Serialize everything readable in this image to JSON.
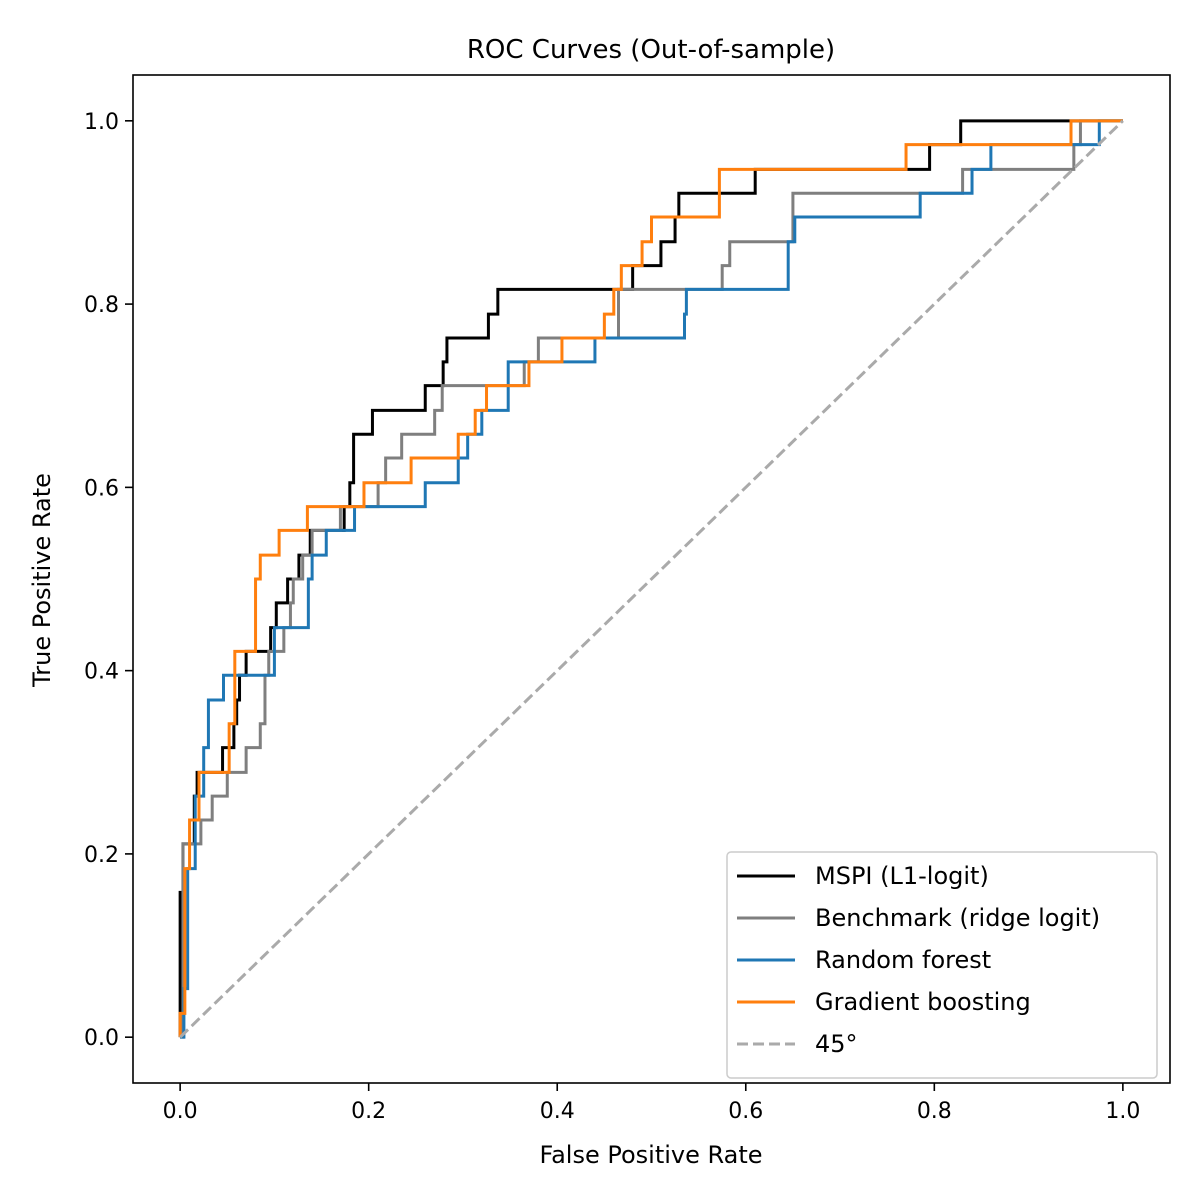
{
  "chart_data": {
    "type": "line",
    "title": "ROC Curves (Out-of-sample)",
    "xlabel": "False Positive Rate",
    "ylabel": "True Positive Rate",
    "xlim": [
      -0.05,
      1.05
    ],
    "ylim": [
      -0.05,
      1.05
    ],
    "xticks": [
      0.0,
      0.2,
      0.4,
      0.6,
      0.8,
      1.0
    ],
    "yticks": [
      0.0,
      0.2,
      0.4,
      0.6,
      0.8,
      1.0
    ],
    "xtick_labels": [
      "0.0",
      "0.2",
      "0.4",
      "0.6",
      "0.8",
      "1.0"
    ],
    "ytick_labels": [
      "0.0",
      "0.2",
      "0.4",
      "0.6",
      "0.8",
      "1.0"
    ],
    "grid": false,
    "legend_position": "lower-right",
    "series": [
      {
        "name": "MSPI (L1-logit)",
        "color": "#000000",
        "dash": "solid",
        "points": [
          [
            0,
            0
          ],
          [
            0,
            0.158
          ],
          [
            0.003,
            0.158
          ],
          [
            0.003,
            0.211
          ],
          [
            0.015,
            0.211
          ],
          [
            0.015,
            0.263
          ],
          [
            0.018,
            0.263
          ],
          [
            0.018,
            0.289
          ],
          [
            0.045,
            0.289
          ],
          [
            0.045,
            0.316
          ],
          [
            0.057,
            0.316
          ],
          [
            0.057,
            0.342
          ],
          [
            0.06,
            0.342
          ],
          [
            0.06,
            0.368
          ],
          [
            0.063,
            0.368
          ],
          [
            0.063,
            0.395
          ],
          [
            0.07,
            0.395
          ],
          [
            0.07,
            0.421
          ],
          [
            0.096,
            0.421
          ],
          [
            0.096,
            0.447
          ],
          [
            0.102,
            0.447
          ],
          [
            0.102,
            0.474
          ],
          [
            0.114,
            0.474
          ],
          [
            0.114,
            0.5
          ],
          [
            0.126,
            0.5
          ],
          [
            0.126,
            0.526
          ],
          [
            0.138,
            0.526
          ],
          [
            0.138,
            0.553
          ],
          [
            0.174,
            0.553
          ],
          [
            0.174,
            0.579
          ],
          [
            0.18,
            0.579
          ],
          [
            0.18,
            0.605
          ],
          [
            0.184,
            0.605
          ],
          [
            0.184,
            0.658
          ],
          [
            0.204,
            0.658
          ],
          [
            0.204,
            0.684
          ],
          [
            0.26,
            0.684
          ],
          [
            0.26,
            0.711
          ],
          [
            0.279,
            0.711
          ],
          [
            0.279,
            0.737
          ],
          [
            0.283,
            0.737
          ],
          [
            0.283,
            0.763
          ],
          [
            0.327,
            0.763
          ],
          [
            0.327,
            0.789
          ],
          [
            0.337,
            0.789
          ],
          [
            0.337,
            0.816
          ],
          [
            0.48,
            0.816
          ],
          [
            0.48,
            0.842
          ],
          [
            0.51,
            0.842
          ],
          [
            0.51,
            0.868
          ],
          [
            0.525,
            0.868
          ],
          [
            0.525,
            0.895
          ],
          [
            0.529,
            0.895
          ],
          [
            0.529,
            0.921
          ],
          [
            0.61,
            0.921
          ],
          [
            0.61,
            0.947
          ],
          [
            0.795,
            0.947
          ],
          [
            0.795,
            0.974
          ],
          [
            0.828,
            0.974
          ],
          [
            0.828,
            1.0
          ],
          [
            1.0,
            1.0
          ]
        ]
      },
      {
        "name": "Benchmark (ridge logit)",
        "color": "#7f7f7f",
        "dash": "solid",
        "points": [
          [
            0,
            0
          ],
          [
            0.003,
            0
          ],
          [
            0.003,
            0.211
          ],
          [
            0.022,
            0.211
          ],
          [
            0.022,
            0.237
          ],
          [
            0.034,
            0.237
          ],
          [
            0.034,
            0.263
          ],
          [
            0.05,
            0.263
          ],
          [
            0.05,
            0.289
          ],
          [
            0.07,
            0.289
          ],
          [
            0.07,
            0.316
          ],
          [
            0.085,
            0.316
          ],
          [
            0.085,
            0.342
          ],
          [
            0.09,
            0.342
          ],
          [
            0.09,
            0.395
          ],
          [
            0.094,
            0.395
          ],
          [
            0.094,
            0.421
          ],
          [
            0.11,
            0.421
          ],
          [
            0.11,
            0.447
          ],
          [
            0.117,
            0.447
          ],
          [
            0.117,
            0.474
          ],
          [
            0.12,
            0.474
          ],
          [
            0.12,
            0.5
          ],
          [
            0.13,
            0.5
          ],
          [
            0.13,
            0.526
          ],
          [
            0.14,
            0.526
          ],
          [
            0.14,
            0.553
          ],
          [
            0.17,
            0.553
          ],
          [
            0.17,
            0.579
          ],
          [
            0.21,
            0.579
          ],
          [
            0.21,
            0.605
          ],
          [
            0.218,
            0.605
          ],
          [
            0.218,
            0.632
          ],
          [
            0.235,
            0.632
          ],
          [
            0.235,
            0.658
          ],
          [
            0.27,
            0.658
          ],
          [
            0.27,
            0.684
          ],
          [
            0.278,
            0.684
          ],
          [
            0.278,
            0.711
          ],
          [
            0.365,
            0.711
          ],
          [
            0.365,
            0.737
          ],
          [
            0.38,
            0.737
          ],
          [
            0.38,
            0.763
          ],
          [
            0.465,
            0.763
          ],
          [
            0.465,
            0.816
          ],
          [
            0.575,
            0.816
          ],
          [
            0.575,
            0.842
          ],
          [
            0.583,
            0.842
          ],
          [
            0.583,
            0.868
          ],
          [
            0.65,
            0.868
          ],
          [
            0.65,
            0.921
          ],
          [
            0.83,
            0.921
          ],
          [
            0.83,
            0.947
          ],
          [
            0.948,
            0.947
          ],
          [
            0.948,
            0.974
          ],
          [
            0.955,
            0.974
          ],
          [
            0.955,
            1.0
          ],
          [
            1.0,
            1.0
          ]
        ]
      },
      {
        "name": "Random forest",
        "color": "#1f77b4",
        "dash": "solid",
        "points": [
          [
            0,
            0
          ],
          [
            0.004,
            0
          ],
          [
            0.004,
            0.053
          ],
          [
            0.008,
            0.053
          ],
          [
            0.008,
            0.184
          ],
          [
            0.016,
            0.184
          ],
          [
            0.016,
            0.263
          ],
          [
            0.025,
            0.263
          ],
          [
            0.025,
            0.316
          ],
          [
            0.03,
            0.316
          ],
          [
            0.03,
            0.368
          ],
          [
            0.046,
            0.368
          ],
          [
            0.046,
            0.395
          ],
          [
            0.1,
            0.395
          ],
          [
            0.1,
            0.447
          ],
          [
            0.136,
            0.447
          ],
          [
            0.136,
            0.5
          ],
          [
            0.14,
            0.5
          ],
          [
            0.14,
            0.526
          ],
          [
            0.155,
            0.526
          ],
          [
            0.155,
            0.553
          ],
          [
            0.185,
            0.553
          ],
          [
            0.185,
            0.579
          ],
          [
            0.26,
            0.579
          ],
          [
            0.26,
            0.605
          ],
          [
            0.295,
            0.605
          ],
          [
            0.295,
            0.632
          ],
          [
            0.305,
            0.632
          ],
          [
            0.305,
            0.658
          ],
          [
            0.32,
            0.658
          ],
          [
            0.32,
            0.684
          ],
          [
            0.348,
            0.684
          ],
          [
            0.348,
            0.737
          ],
          [
            0.44,
            0.737
          ],
          [
            0.44,
            0.763
          ],
          [
            0.535,
            0.763
          ],
          [
            0.535,
            0.789
          ],
          [
            0.537,
            0.789
          ],
          [
            0.537,
            0.816
          ],
          [
            0.645,
            0.816
          ],
          [
            0.645,
            0.868
          ],
          [
            0.652,
            0.868
          ],
          [
            0.652,
            0.895
          ],
          [
            0.785,
            0.895
          ],
          [
            0.785,
            0.921
          ],
          [
            0.84,
            0.921
          ],
          [
            0.84,
            0.947
          ],
          [
            0.86,
            0.947
          ],
          [
            0.86,
            0.974
          ],
          [
            0.975,
            0.974
          ],
          [
            0.975,
            1.0
          ],
          [
            1.0,
            1.0
          ]
        ]
      },
      {
        "name": "Gradient boosting",
        "color": "#ff7f0e",
        "dash": "solid",
        "points": [
          [
            0,
            0
          ],
          [
            0,
            0.026
          ],
          [
            0.005,
            0.026
          ],
          [
            0.005,
            0.184
          ],
          [
            0.01,
            0.184
          ],
          [
            0.01,
            0.237
          ],
          [
            0.02,
            0.237
          ],
          [
            0.02,
            0.289
          ],
          [
            0.052,
            0.289
          ],
          [
            0.052,
            0.342
          ],
          [
            0.058,
            0.342
          ],
          [
            0.058,
            0.421
          ],
          [
            0.08,
            0.421
          ],
          [
            0.08,
            0.5
          ],
          [
            0.085,
            0.5
          ],
          [
            0.085,
            0.526
          ],
          [
            0.105,
            0.526
          ],
          [
            0.105,
            0.553
          ],
          [
            0.135,
            0.553
          ],
          [
            0.135,
            0.579
          ],
          [
            0.195,
            0.579
          ],
          [
            0.195,
            0.605
          ],
          [
            0.245,
            0.605
          ],
          [
            0.245,
            0.632
          ],
          [
            0.295,
            0.632
          ],
          [
            0.295,
            0.658
          ],
          [
            0.313,
            0.658
          ],
          [
            0.313,
            0.684
          ],
          [
            0.325,
            0.684
          ],
          [
            0.325,
            0.711
          ],
          [
            0.37,
            0.711
          ],
          [
            0.37,
            0.737
          ],
          [
            0.405,
            0.737
          ],
          [
            0.405,
            0.763
          ],
          [
            0.45,
            0.763
          ],
          [
            0.45,
            0.789
          ],
          [
            0.46,
            0.789
          ],
          [
            0.46,
            0.816
          ],
          [
            0.468,
            0.816
          ],
          [
            0.468,
            0.842
          ],
          [
            0.49,
            0.842
          ],
          [
            0.49,
            0.868
          ],
          [
            0.5,
            0.868
          ],
          [
            0.5,
            0.895
          ],
          [
            0.572,
            0.895
          ],
          [
            0.572,
            0.947
          ],
          [
            0.77,
            0.947
          ],
          [
            0.77,
            0.974
          ],
          [
            0.945,
            0.974
          ],
          [
            0.945,
            1.0
          ],
          [
            1.0,
            1.0
          ]
        ]
      },
      {
        "name": "45°",
        "color": "#aaaaaa",
        "dash": "dashed",
        "points": [
          [
            0,
            0
          ],
          [
            1,
            1
          ]
        ]
      }
    ]
  }
}
